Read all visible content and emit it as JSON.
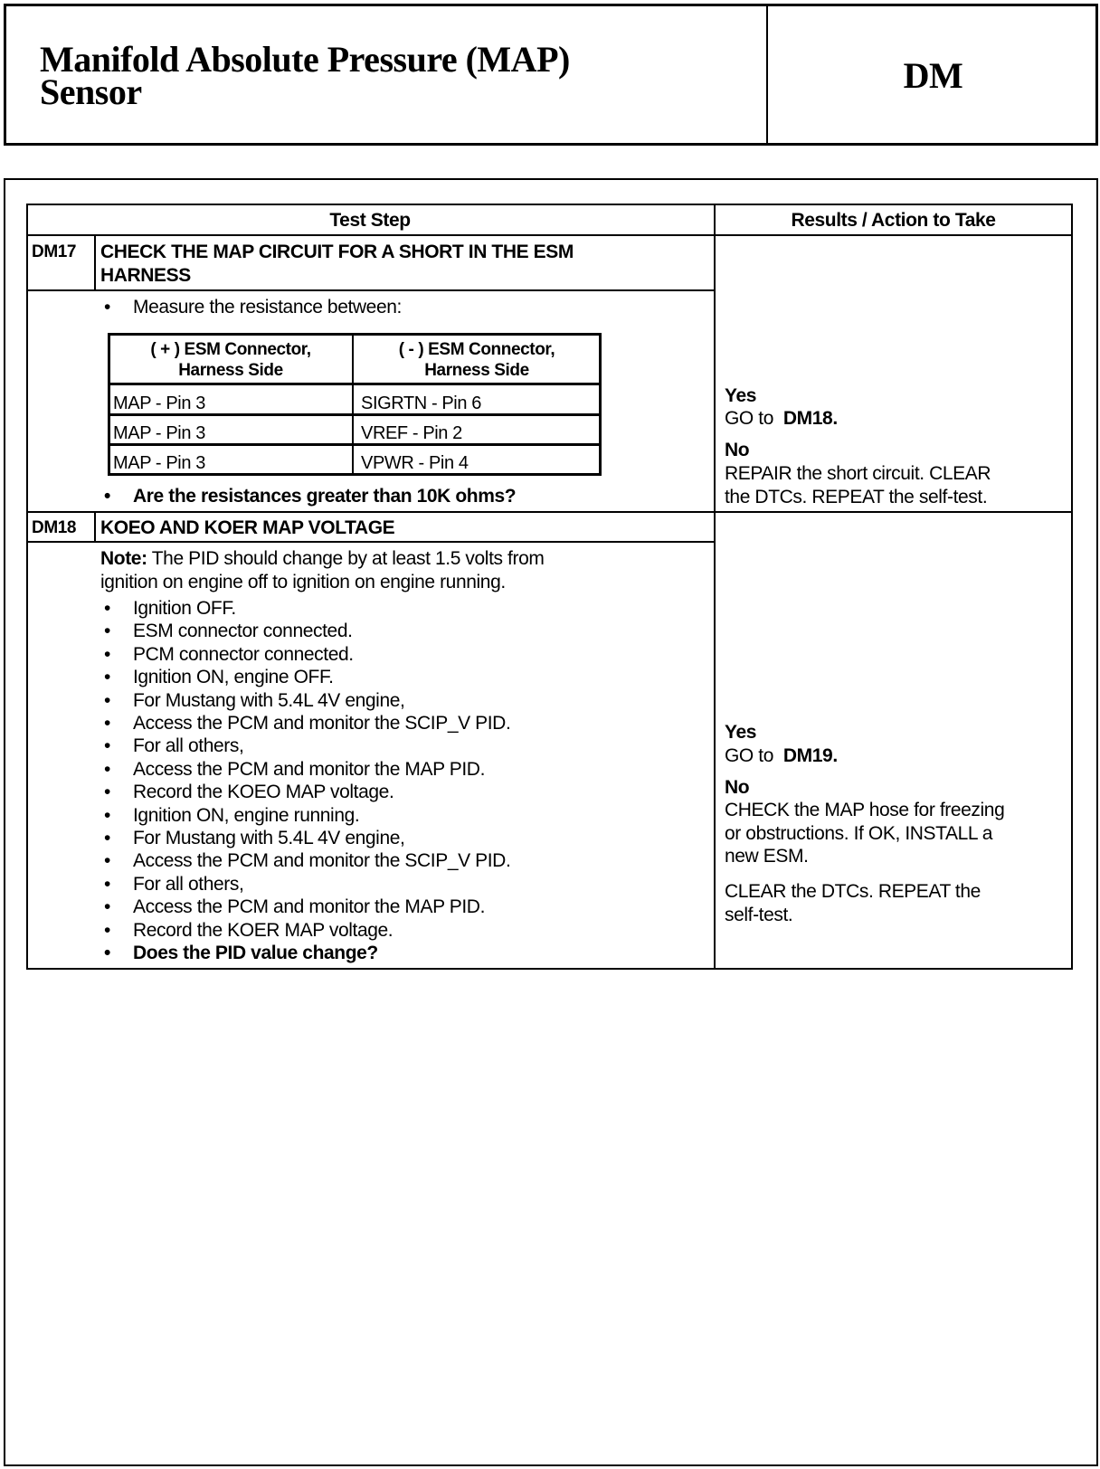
{
  "header": {
    "title_line1": "Manifold Absolute Pressure (MAP)",
    "title_line2": "Sensor",
    "code": "DM"
  },
  "table": {
    "col_test_step": "Test Step",
    "col_results": "Results / Action to Take",
    "steps": [
      {
        "id": "DM17",
        "title_line1": "CHECK THE MAP CIRCUIT FOR A SHORT IN THE  ESM",
        "title_line2": "HARNESS",
        "intro": "Measure the resistance between:",
        "inner_table": {
          "col_plus_line1": "( + ) ESM Connector,",
          "col_plus_line2": "Harness Side",
          "col_minus_line1": "( - ) ESM Connector,",
          "col_minus_line2": "Harness Side",
          "rows": [
            {
              "plus": "MAP - Pin 3",
              "minus": "SIGRTN - Pin 6"
            },
            {
              "plus": "MAP - Pin 3",
              "minus": "VREF - Pin 2"
            },
            {
              "plus": "MAP - Pin 3",
              "minus": "VPWR - Pin 4"
            }
          ]
        },
        "question": "Are the resistances greater than 10K ohms?",
        "results": {
          "yes_label": "Yes",
          "yes_action_prefix": "GO to",
          "yes_action_target": "DM18.",
          "no_label": "No",
          "no_action_line1": "REPAIR the short circuit. CLEAR",
          "no_action_line2": "the DTCs. REPEAT the self-test."
        }
      },
      {
        "id": "DM18",
        "title_line1": "KOEO AND KOER MAP VOLTAGE",
        "note_label": "Note:",
        "note_line1": "The PID should change by at least 1.5 volts from",
        "note_line2": "ignition on engine off to ignition on engine running.",
        "bullets": [
          "Ignition OFF.",
          "ESM connector connected.",
          "PCM connector connected.",
          "Ignition ON, engine OFF.",
          "For Mustang with 5.4L 4V engine,",
          "Access the PCM and monitor the SCIP_V PID.",
          "For all others,",
          "Access the PCM and monitor the MAP PID.",
          "Record the KOEO MAP voltage.",
          "Ignition ON, engine running.",
          "For Mustang with 5.4L 4V engine,",
          "Access the PCM and monitor the SCIP_V PID.",
          "For all others,",
          "Access the PCM and monitor the MAP PID.",
          "Record the KOER MAP voltage."
        ],
        "question": "Does the PID value change?",
        "results": {
          "yes_label": "Yes",
          "yes_action_prefix": "GO to",
          "yes_action_target": "DM19.",
          "no_label": "No",
          "no_action_line1": "CHECK the MAP hose for freezing",
          "no_action_line2": "or obstructions.  If OK, INSTALL a",
          "no_action_line3": "new ESM.",
          "extra_line1": "CLEAR the DTCs. REPEAT the",
          "extra_line2": "self-test."
        }
      }
    ]
  }
}
